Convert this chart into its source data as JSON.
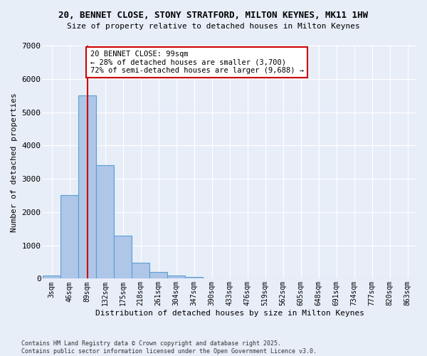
{
  "title_line1": "20, BENNET CLOSE, STONY STRATFORD, MILTON KEYNES, MK11 1HW",
  "title_line2": "Size of property relative to detached houses in Milton Keynes",
  "xlabel": "Distribution of detached houses by size in Milton Keynes",
  "ylabel": "Number of detached properties",
  "categories": [
    "3sqm",
    "46sqm",
    "89sqm",
    "132sqm",
    "175sqm",
    "218sqm",
    "261sqm",
    "304sqm",
    "347sqm",
    "390sqm",
    "433sqm",
    "476sqm",
    "519sqm",
    "562sqm",
    "605sqm",
    "648sqm",
    "691sqm",
    "734sqm",
    "777sqm",
    "820sqm",
    "863sqm"
  ],
  "values": [
    100,
    2500,
    5500,
    3400,
    1300,
    470,
    200,
    90,
    50,
    0,
    0,
    0,
    0,
    0,
    0,
    0,
    0,
    0,
    0,
    0,
    0
  ],
  "bar_color": "#aec6e8",
  "bar_edge_color": "#5a9fd4",
  "vline_x_index": 2,
  "annotation_text": "20 BENNET CLOSE: 99sqm\n← 28% of detached houses are smaller (3,700)\n72% of semi-detached houses are larger (9,688) →",
  "annotation_box_color": "#ffffff",
  "annotation_box_edge": "#cc0000",
  "annotation_text_color": "#000000",
  "vline_color": "#cc0000",
  "ylim": [
    0,
    7000
  ],
  "yticks": [
    0,
    1000,
    2000,
    3000,
    4000,
    5000,
    6000,
    7000
  ],
  "background_color": "#e8eef8",
  "grid_color": "#ffffff",
  "footer": "Contains HM Land Registry data © Crown copyright and database right 2025.\nContains public sector information licensed under the Open Government Licence v3.0."
}
